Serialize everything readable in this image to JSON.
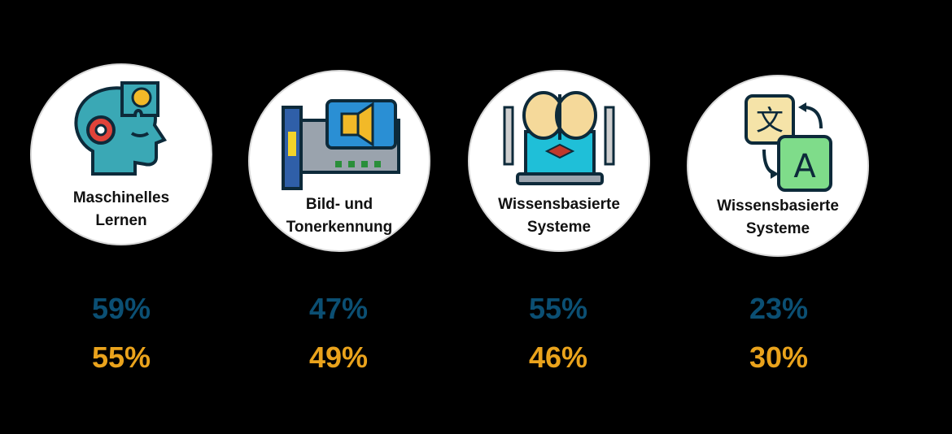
{
  "colors": {
    "background": "#000000",
    "primary": "#0b4f73",
    "secondary": "#eaa31c"
  },
  "cards": [
    {
      "label": "Maschinelles\nLernen",
      "icon": "brain-gear-icon",
      "value_primary": "59%",
      "value_secondary": "55%"
    },
    {
      "label": "Bild- und\nTonerkennung",
      "icon": "sound-card-icon",
      "value_primary": "47%",
      "value_secondary": "49%"
    },
    {
      "label": "Wissensbasierte\nSysteme",
      "icon": "laptop-brain-icon",
      "value_primary": "55%",
      "value_secondary": "46%"
    },
    {
      "label": "Wissensbasierte\nSysteme",
      "icon": "translate-icon",
      "value_primary": "23%",
      "value_secondary": "30%"
    }
  ]
}
